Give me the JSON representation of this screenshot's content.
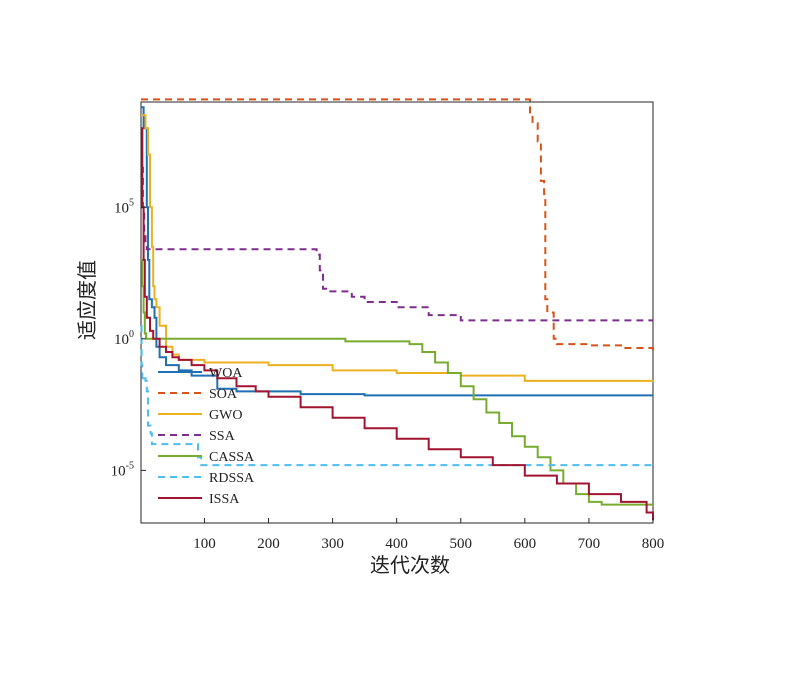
{
  "chart_data": {
    "type": "line",
    "title": "",
    "xlabel": "迭代次数",
    "ylabel": "适应度值",
    "xlim": [
      1,
      800
    ],
    "ylim_log10": [
      -7,
      9
    ],
    "yscale": "log",
    "x_ticks": [
      100,
      200,
      300,
      400,
      500,
      600,
      700,
      800
    ],
    "y_ticks": [
      {
        "base": "10",
        "exp": "5",
        "value": 5
      },
      {
        "base": "10",
        "exp": "0",
        "value": 0
      },
      {
        "base": "10",
        "exp": "-5",
        "value": -5
      }
    ],
    "legend_position": "lower-left inside",
    "grid": false,
    "series": [
      {
        "name": "WOA",
        "color": "#1f6fb4",
        "dash": "solid",
        "x": [
          1,
          5,
          10,
          12,
          14,
          18,
          22,
          25,
          30,
          40,
          60,
          80,
          100,
          120,
          150,
          200,
          250,
          300,
          350,
          400,
          500,
          600,
          700,
          800
        ],
        "log10_y": [
          8.8,
          8.0,
          5.0,
          3.0,
          1.5,
          1.2,
          0.8,
          -0.3,
          -0.7,
          -1.0,
          -1.2,
          -1.4,
          -1.4,
          -1.9,
          -2.0,
          -2.0,
          -2.1,
          -2.1,
          -2.15,
          -2.15,
          -2.15,
          -2.15,
          -2.15,
          -2.15
        ]
      },
      {
        "name": "SOA",
        "color": "#d95319",
        "dash": "dashed",
        "x": [
          1,
          605,
          608,
          612,
          620,
          625,
          630,
          632,
          635,
          640,
          645,
          650,
          700,
          750,
          800
        ],
        "log10_y": [
          9.1,
          9.1,
          8.5,
          8.2,
          7.5,
          6.0,
          5.5,
          1.5,
          1.0,
          1.0,
          0.0,
          -0.2,
          -0.25,
          -0.35,
          -0.5
        ]
      },
      {
        "name": "GWO",
        "color": "#edb120",
        "dash": "solid",
        "x": [
          1,
          8,
          12,
          15,
          18,
          20,
          22,
          25,
          30,
          40,
          50,
          60,
          100,
          200,
          300,
          400,
          450,
          500,
          600,
          700,
          800
        ],
        "log10_y": [
          8.5,
          8.0,
          7.0,
          5.0,
          3.5,
          2.0,
          1.5,
          1.2,
          0.5,
          -0.3,
          -0.6,
          -0.8,
          -0.9,
          -1.0,
          -1.2,
          -1.3,
          -1.3,
          -1.4,
          -1.6,
          -1.6,
          -1.65
        ]
      },
      {
        "name": "SSA",
        "color": "#7e2f8e",
        "dash": "dashed",
        "x": [
          1,
          4,
          6,
          8,
          10,
          15,
          20,
          265,
          275,
          280,
          285,
          290,
          320,
          330,
          350,
          400,
          450,
          500,
          800
        ],
        "log10_y": [
          6.5,
          5.0,
          4.0,
          3.5,
          3.4,
          3.4,
          3.4,
          3.4,
          3.2,
          2.6,
          1.9,
          1.8,
          1.8,
          1.6,
          1.4,
          1.2,
          0.9,
          0.7,
          0.7
        ]
      },
      {
        "name": "CASSA",
        "color": "#77ac30",
        "dash": "solid",
        "x": [
          1,
          3,
          5,
          7,
          9,
          10,
          300,
          320,
          420,
          440,
          460,
          480,
          500,
          520,
          540,
          560,
          580,
          600,
          620,
          640,
          660,
          680,
          700,
          720,
          800
        ],
        "log10_y": [
          3.0,
          2.0,
          1.0,
          0.2,
          0.0,
          0.0,
          0.0,
          -0.1,
          -0.2,
          -0.5,
          -0.9,
          -1.3,
          -1.8,
          -2.3,
          -2.8,
          -3.2,
          -3.7,
          -4.1,
          -4.5,
          -5.0,
          -5.5,
          -5.9,
          -6.2,
          -6.3,
          -6.3
        ]
      },
      {
        "name": "RDSSA",
        "color": "#4dbeee",
        "dash": "dashed",
        "x": [
          1,
          2,
          3,
          5,
          6,
          8,
          10,
          12,
          14,
          16,
          18,
          20,
          85,
          90,
          95,
          800
        ],
        "log10_y": [
          0.5,
          -1.0,
          -1.5,
          -1.6,
          -1.5,
          -1.6,
          -2.0,
          -3.3,
          -3.3,
          -3.6,
          -4.0,
          -4.0,
          -4.0,
          -4.5,
          -4.8,
          -4.8
        ]
      },
      {
        "name": "ISSA",
        "color": "#a2142f",
        "dash": "solid",
        "x": [
          1,
          3,
          5,
          7,
          10,
          15,
          20,
          30,
          40,
          50,
          60,
          80,
          100,
          120,
          150,
          180,
          200,
          250,
          300,
          350,
          400,
          450,
          500,
          550,
          600,
          650,
          700,
          750,
          790,
          800
        ],
        "log10_y": [
          8.0,
          5.0,
          3.0,
          1.6,
          0.8,
          0.3,
          0.0,
          -0.3,
          -0.5,
          -0.7,
          -0.8,
          -1.0,
          -1.2,
          -1.5,
          -1.8,
          -2.0,
          -2.2,
          -2.6,
          -3.0,
          -3.4,
          -3.8,
          -4.2,
          -4.5,
          -4.8,
          -5.2,
          -5.5,
          -5.9,
          -6.2,
          -6.6,
          -6.9
        ]
      }
    ]
  }
}
